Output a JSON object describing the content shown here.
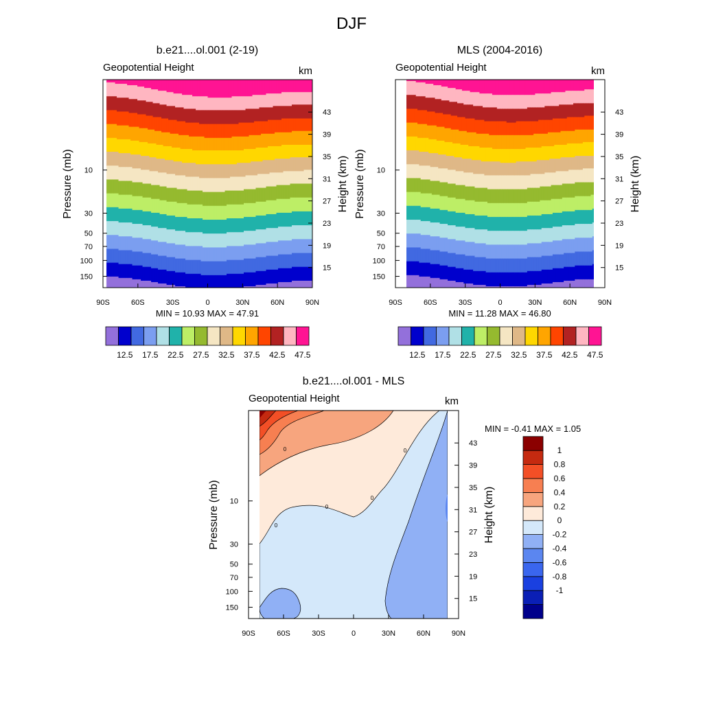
{
  "figure_title": "DJF",
  "panels": {
    "p1": {
      "title": "b.e21....ol.001 (2-19)",
      "subtitle": "Geopotential Height",
      "units": "km",
      "ylabel_left": "Pressure (mb)",
      "ylabel_right": "Height (km)",
      "stats": "MIN =  10.93  MAX =  47.91"
    },
    "p2": {
      "title": "MLS (2004-2016)",
      "subtitle": "Geopotential Height",
      "units": "km",
      "ylabel_left": "Pressure (mb)",
      "ylabel_right": "Height (km)",
      "stats": "MIN =  11.28  MAX =  46.80"
    },
    "p3": {
      "title": "b.e21....ol.001 - MLS",
      "subtitle": "Geopotential Height",
      "units": "km",
      "ylabel_left": "Pressure (mb)",
      "ylabel_right": "Height (km)",
      "stats": "MIN =  -0.41  MAX =   1.05"
    }
  },
  "chart_data": [
    {
      "type": "contour",
      "title": "b.e21....ol.001 (2-19)",
      "variable": "Geopotential Height",
      "units": "km",
      "x_ticks": [
        "90S",
        "60S",
        "30S",
        "0",
        "30N",
        "60N",
        "90N"
      ],
      "x_range": [
        -90,
        90
      ],
      "data_lat_range": [
        -87,
        90
      ],
      "y_pressure_ticks": [
        "10",
        "30",
        "50",
        "70",
        "100",
        "150"
      ],
      "y_pressure_values": [
        10,
        30,
        50,
        70,
        100,
        150
      ],
      "y_pressure_range": [
        1,
        200
      ],
      "y_height_ticks": [
        "15",
        "19",
        "23",
        "27",
        "31",
        "35",
        "39",
        "43"
      ],
      "y_height_values": [
        15,
        19,
        23,
        27,
        31,
        35,
        39,
        43
      ],
      "contour_min": 10.93,
      "contour_max": 47.91
    },
    {
      "type": "contour",
      "title": "MLS (2004-2016)",
      "variable": "Geopotential Height",
      "units": "km",
      "x_ticks": [
        "90S",
        "60S",
        "30S",
        "0",
        "30N",
        "60N",
        "90N"
      ],
      "x_range": [
        -90,
        90
      ],
      "data_lat_range": [
        -82,
        82
      ],
      "y_pressure_ticks": [
        "10",
        "30",
        "50",
        "70",
        "100",
        "150"
      ],
      "y_pressure_values": [
        10,
        30,
        50,
        70,
        100,
        150
      ],
      "y_pressure_range": [
        1,
        200
      ],
      "y_height_ticks": [
        "15",
        "19",
        "23",
        "27",
        "31",
        "35",
        "39",
        "43"
      ],
      "y_height_values": [
        15,
        19,
        23,
        27,
        31,
        35,
        39,
        43
      ],
      "contour_min": 11.28,
      "contour_max": 46.8
    },
    {
      "type": "contour",
      "title": "b.e21....ol.001 - MLS",
      "variable": "Geopotential Height",
      "units": "km",
      "x_ticks": [
        "90S",
        "60S",
        "30S",
        "0",
        "30N",
        "60N",
        "90N"
      ],
      "x_range": [
        -90,
        90
      ],
      "data_lat_range": [
        -82,
        82
      ],
      "y_pressure_ticks": [
        "10",
        "30",
        "50",
        "70",
        "100",
        "150"
      ],
      "y_pressure_values": [
        10,
        30,
        50,
        70,
        100,
        150
      ],
      "y_pressure_range": [
        1,
        200
      ],
      "y_height_ticks": [
        "15",
        "19",
        "23",
        "27",
        "31",
        "35",
        "39",
        "43"
      ],
      "y_height_values": [
        15,
        19,
        23,
        27,
        31,
        35,
        39,
        43
      ],
      "zero_contour_label": "0",
      "contour_min": -0.41,
      "contour_max": 1.05
    }
  ],
  "colorbar_main": {
    "colors": [
      "#9370db",
      "#0000cd",
      "#4169e1",
      "#7b9ef0",
      "#b0e0e6",
      "#20b2aa",
      "#bdee66",
      "#95ba2f",
      "#f5e6c3",
      "#dfb887",
      "#ffd700",
      "#ffa500",
      "#ff4500",
      "#b22222",
      "#ffb6c1",
      "#ff1493"
    ],
    "labels": [
      "12.5",
      "17.5",
      "22.5",
      "27.5",
      "32.5",
      "37.5",
      "42.5",
      "47.5"
    ]
  },
  "colorbar_diff": {
    "colors": [
      "#00008b",
      "#0a1fb5",
      "#1a40e0",
      "#3a66ee",
      "#5b86f0",
      "#90b0f5",
      "#d4e8fa",
      "#feeada",
      "#f7a57e",
      "#f77f51",
      "#f34f26",
      "#c52a10",
      "#8b0000"
    ],
    "labels": [
      "1",
      "0.8",
      "0.6",
      "0.4",
      "0.2",
      "0",
      "-0.2",
      "-0.4",
      "-0.6",
      "-0.8",
      "-1"
    ]
  }
}
